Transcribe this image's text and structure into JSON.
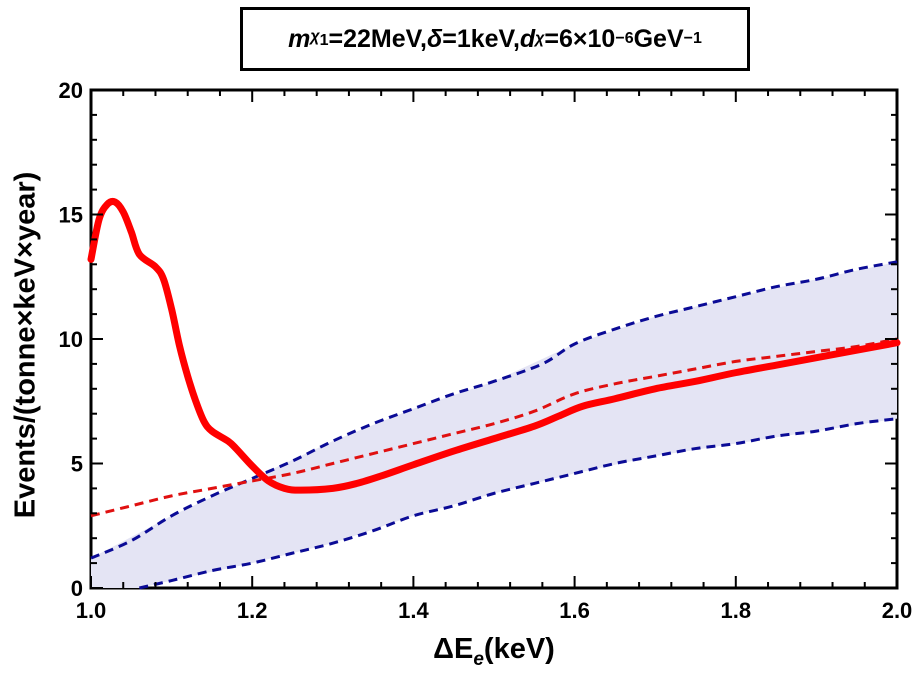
{
  "chart_data": {
    "type": "line",
    "title": {
      "symbol": "m",
      "sub_symbol": "χ",
      "sub_index": "1",
      "mass_value": "=22MeV, ",
      "delta_symbol": "δ",
      "delta_value": "=1keV, ",
      "d_symbol": "d",
      "d_sub": "χ",
      "d_value": "=6×10",
      "d_exp": "−6",
      "d_unit": "GeV",
      "d_unit_exp": "−1"
    },
    "xlabel": {
      "prefix": "ΔE",
      "sub": "e",
      "suffix": "(keV)"
    },
    "ylabel": "Events/(tonne×keV×year)",
    "xlim": [
      1.0,
      2.0
    ],
    "ylim": [
      0,
      20
    ],
    "xticks": [
      "1.0",
      "1.2",
      "1.4",
      "1.6",
      "1.8",
      "2.0"
    ],
    "yticks": [
      "0",
      "5",
      "10",
      "15",
      "20"
    ],
    "grid": false,
    "series": [
      {
        "style": "band",
        "color": "#e4e4f4",
        "upper": [
          [
            1.0,
            1.2
          ],
          [
            1.1,
            2.9
          ],
          [
            1.2,
            4.4
          ],
          [
            1.3,
            5.9
          ],
          [
            1.4,
            7.2
          ],
          [
            1.5,
            8.3
          ],
          [
            1.6,
            9.8
          ],
          [
            1.7,
            10.9
          ],
          [
            1.8,
            11.7
          ],
          [
            1.9,
            12.4
          ],
          [
            2.0,
            13.1
          ]
        ],
        "lower": [
          [
            1.0,
            0.0
          ],
          [
            1.06,
            0.0
          ],
          [
            1.1,
            0.3
          ],
          [
            1.2,
            1.0
          ],
          [
            1.3,
            1.8
          ],
          [
            1.4,
            2.9
          ],
          [
            1.5,
            3.8
          ],
          [
            1.6,
            4.6
          ],
          [
            1.7,
            5.3
          ],
          [
            1.8,
            5.8
          ],
          [
            1.9,
            6.3
          ],
          [
            2.0,
            6.8
          ]
        ]
      },
      {
        "style": "dashed",
        "color": "#0b0b96",
        "points": [
          [
            1.0,
            1.2
          ],
          [
            1.05,
            1.9
          ],
          [
            1.1,
            2.9
          ],
          [
            1.15,
            3.7
          ],
          [
            1.2,
            4.4
          ],
          [
            1.25,
            5.1
          ],
          [
            1.3,
            5.9
          ],
          [
            1.35,
            6.6
          ],
          [
            1.4,
            7.2
          ],
          [
            1.45,
            7.8
          ],
          [
            1.5,
            8.3
          ],
          [
            1.56,
            9.0
          ],
          [
            1.6,
            9.8
          ],
          [
            1.65,
            10.4
          ],
          [
            1.7,
            10.9
          ],
          [
            1.75,
            11.3
          ],
          [
            1.8,
            11.7
          ],
          [
            1.85,
            12.1
          ],
          [
            1.9,
            12.4
          ],
          [
            1.95,
            12.8
          ],
          [
            2.0,
            13.1
          ]
        ]
      },
      {
        "style": "dashed",
        "color": "#0b0b96",
        "points": [
          [
            1.06,
            0.0
          ],
          [
            1.1,
            0.3
          ],
          [
            1.15,
            0.7
          ],
          [
            1.2,
            1.0
          ],
          [
            1.25,
            1.4
          ],
          [
            1.3,
            1.8
          ],
          [
            1.35,
            2.3
          ],
          [
            1.4,
            2.9
          ],
          [
            1.45,
            3.3
          ],
          [
            1.5,
            3.8
          ],
          [
            1.55,
            4.2
          ],
          [
            1.6,
            4.6
          ],
          [
            1.65,
            5.0
          ],
          [
            1.7,
            5.3
          ],
          [
            1.75,
            5.6
          ],
          [
            1.8,
            5.8
          ],
          [
            1.85,
            6.1
          ],
          [
            1.9,
            6.3
          ],
          [
            1.95,
            6.6
          ],
          [
            2.0,
            6.8
          ]
        ]
      },
      {
        "style": "dashed",
        "color": "#e01010",
        "points": [
          [
            1.0,
            2.9
          ],
          [
            1.05,
            3.3
          ],
          [
            1.1,
            3.7
          ],
          [
            1.15,
            4.0
          ],
          [
            1.2,
            4.3
          ],
          [
            1.25,
            4.6
          ],
          [
            1.3,
            5.0
          ],
          [
            1.35,
            5.4
          ],
          [
            1.4,
            5.8
          ],
          [
            1.45,
            6.2
          ],
          [
            1.5,
            6.6
          ],
          [
            1.55,
            7.1
          ],
          [
            1.6,
            7.8
          ],
          [
            1.65,
            8.2
          ],
          [
            1.7,
            8.5
          ],
          [
            1.75,
            8.8
          ],
          [
            1.8,
            9.1
          ],
          [
            1.85,
            9.3
          ],
          [
            1.9,
            9.5
          ],
          [
            1.95,
            9.7
          ],
          [
            2.0,
            10.0
          ]
        ]
      },
      {
        "style": "solid",
        "color": "#ff0000",
        "points": [
          [
            1.0,
            13.2
          ],
          [
            1.01,
            14.8
          ],
          [
            1.02,
            15.4
          ],
          [
            1.03,
            15.5
          ],
          [
            1.04,
            15.1
          ],
          [
            1.05,
            14.3
          ],
          [
            1.06,
            13.4
          ],
          [
            1.08,
            12.9
          ],
          [
            1.09,
            12.4
          ],
          [
            1.1,
            11.2
          ],
          [
            1.11,
            9.7
          ],
          [
            1.12,
            8.5
          ],
          [
            1.13,
            7.5
          ],
          [
            1.14,
            6.7
          ],
          [
            1.15,
            6.3
          ],
          [
            1.17,
            5.9
          ],
          [
            1.18,
            5.6
          ],
          [
            1.2,
            4.9
          ],
          [
            1.22,
            4.3
          ],
          [
            1.24,
            4.0
          ],
          [
            1.26,
            3.93
          ],
          [
            1.3,
            4.0
          ],
          [
            1.33,
            4.2
          ],
          [
            1.36,
            4.5
          ],
          [
            1.4,
            4.95
          ],
          [
            1.45,
            5.5
          ],
          [
            1.5,
            6.0
          ],
          [
            1.55,
            6.5
          ],
          [
            1.58,
            6.9
          ],
          [
            1.61,
            7.3
          ],
          [
            1.65,
            7.6
          ],
          [
            1.7,
            8.0
          ],
          [
            1.75,
            8.3
          ],
          [
            1.8,
            8.65
          ],
          [
            1.85,
            8.95
          ],
          [
            1.9,
            9.25
          ],
          [
            1.95,
            9.55
          ],
          [
            2.0,
            9.85
          ]
        ]
      }
    ]
  }
}
